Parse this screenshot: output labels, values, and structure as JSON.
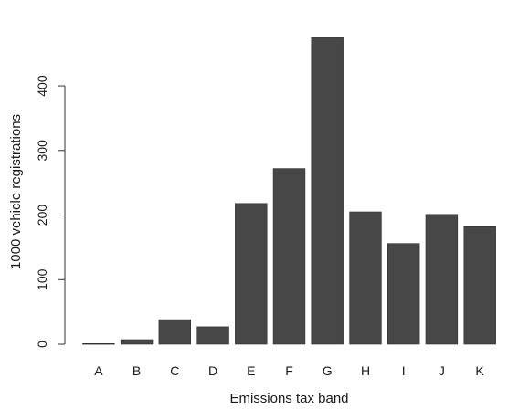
{
  "chart_data": {
    "type": "bar",
    "title": "",
    "xlabel": "Emissions tax band",
    "ylabel": "1000 vehicle registrations",
    "categories": [
      "A",
      "B",
      "C",
      "D",
      "E",
      "F",
      "G",
      "H",
      "I",
      "J",
      "K"
    ],
    "values": [
      1,
      7,
      38,
      27,
      218,
      272,
      475,
      205,
      156,
      201,
      182
    ],
    "ylim": [
      0,
      475
    ],
    "yticks": [
      0,
      100,
      200,
      300,
      400
    ],
    "grid": false,
    "legend": "none",
    "bar_color": "#474747"
  }
}
